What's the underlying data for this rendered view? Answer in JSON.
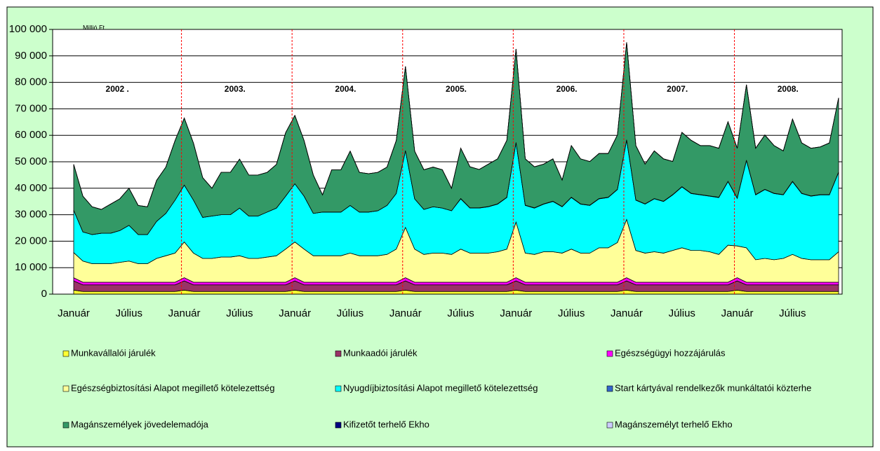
{
  "chart_data": {
    "type": "stacked_area",
    "unit_label": "Millió Ft",
    "categories": [
      "Január",
      null,
      null,
      null,
      null,
      null,
      "Július",
      null,
      null,
      null,
      null,
      null,
      "Január",
      null,
      null,
      null,
      null,
      null,
      "Július",
      null,
      null,
      null,
      null,
      null,
      "Január",
      null,
      null,
      null,
      null,
      null,
      "Július",
      null,
      null,
      null,
      null,
      null,
      "Január",
      null,
      null,
      null,
      null,
      null,
      "Július",
      null,
      null,
      null,
      null,
      null,
      "Január",
      null,
      null,
      null,
      null,
      null,
      "Július",
      null,
      null,
      null,
      null,
      null,
      "Január",
      null,
      null,
      null,
      null,
      null,
      "Július",
      null,
      null,
      null,
      null,
      null,
      "Január",
      null,
      null,
      null,
      null,
      null,
      "Július",
      null,
      null,
      null,
      null,
      null
    ],
    "year_labels": [
      "2002 .",
      "2003.",
      "2004.",
      "2005.",
      "2006.",
      "2007.",
      "2008."
    ],
    "ylim": [
      0,
      100000
    ],
    "yticks": [
      0,
      {
        "value": 10000,
        "label": "10 000"
      },
      {
        "value": 20000,
        "label": "20 000"
      },
      {
        "value": 30000,
        "label": "30 000"
      },
      {
        "value": 40000,
        "label": "40 000"
      },
      {
        "value": 50000,
        "label": "50 000"
      },
      {
        "value": 60000,
        "label": "60 000"
      },
      {
        "value": 70000,
        "label": "70 000"
      },
      {
        "value": 80000,
        "label": "80 000"
      },
      {
        "value": 90000,
        "label": "90 000"
      },
      {
        "value": 100000,
        "label": "100 000"
      }
    ],
    "grid": true,
    "legend": "bottom",
    "series": [
      {
        "name": "Munkavállalói járulék",
        "color": "#ffff33",
        "values": [
          1500,
          1000,
          1000,
          1000,
          1000,
          1000,
          1000,
          1000,
          1000,
          1000,
          1000,
          1000,
          1500,
          1000,
          1000,
          1000,
          1000,
          1000,
          1000,
          1000,
          1000,
          1000,
          1000,
          1000,
          1500,
          1000,
          1000,
          1000,
          1000,
          1000,
          1000,
          1000,
          1000,
          1000,
          1000,
          1000,
          1500,
          1000,
          1000,
          1000,
          1000,
          1000,
          1000,
          1000,
          1000,
          1000,
          1000,
          1000,
          1500,
          1000,
          1000,
          1000,
          1000,
          1000,
          1000,
          1000,
          1000,
          1000,
          1000,
          1000,
          1500,
          1000,
          1000,
          1000,
          1000,
          1000,
          1000,
          1000,
          1000,
          1000,
          1000,
          1000,
          1500,
          1000,
          1000,
          1000,
          1000,
          1000,
          1000,
          1000,
          1000,
          1000,
          1000,
          1000
        ]
      },
      {
        "name": "Munkaadói járulék",
        "color": "#993366",
        "values": [
          3500,
          2500,
          2500,
          2500,
          2500,
          2500,
          2500,
          2500,
          2500,
          2500,
          2500,
          2500,
          3500,
          2500,
          2500,
          2500,
          2500,
          2500,
          2500,
          2500,
          2500,
          2500,
          2500,
          2500,
          3500,
          2500,
          2500,
          2500,
          2500,
          2500,
          2500,
          2500,
          2500,
          2500,
          2500,
          2500,
          3500,
          2500,
          2500,
          2500,
          2500,
          2500,
          2500,
          2500,
          2500,
          2500,
          2500,
          2500,
          3500,
          2500,
          2500,
          2500,
          2500,
          2500,
          2500,
          2500,
          2500,
          2500,
          2500,
          2500,
          3500,
          2500,
          2500,
          2500,
          2500,
          2500,
          2500,
          2500,
          2500,
          2500,
          2500,
          2500,
          3500,
          2500,
          2500,
          2500,
          2500,
          2500,
          2500,
          2500,
          2500,
          2500,
          2500,
          2500
        ]
      },
      {
        "name": "Egészségügyi hozzájárulás",
        "color": "#ff00ff",
        "values": [
          1200,
          1000,
          1000,
          1000,
          1000,
          1000,
          1000,
          1000,
          1000,
          1000,
          1000,
          1000,
          1200,
          1000,
          1000,
          1000,
          1000,
          1000,
          1000,
          1000,
          1000,
          1000,
          1000,
          1000,
          1200,
          1000,
          1000,
          1000,
          1000,
          1000,
          1000,
          1000,
          1000,
          1000,
          1000,
          1000,
          1200,
          1000,
          1000,
          1000,
          1000,
          1000,
          1000,
          1000,
          1000,
          1000,
          1000,
          1000,
          1200,
          1000,
          1000,
          1000,
          1000,
          1000,
          1000,
          1000,
          1000,
          1000,
          1000,
          1000,
          1200,
          1000,
          1000,
          1000,
          1000,
          1000,
          1000,
          1000,
          1000,
          1000,
          1000,
          1000,
          1200,
          1000,
          1000,
          1000,
          1000,
          1000,
          1000,
          1000,
          1000,
          1000,
          1000,
          1000
        ]
      },
      {
        "name": "Egészségbiztosítási Alapot megillető kötelezettség",
        "color": "#ffff99",
        "values": [
          9500,
          8000,
          7000,
          7000,
          7000,
          7500,
          8000,
          7000,
          7000,
          9000,
          10000,
          11000,
          13500,
          11000,
          9000,
          9000,
          9500,
          9500,
          10000,
          9000,
          9000,
          9500,
          10000,
          12500,
          13500,
          12500,
          10000,
          10000,
          10000,
          10000,
          11000,
          10000,
          10000,
          10000,
          10500,
          12500,
          19000,
          12500,
          10500,
          11000,
          11000,
          10500,
          12500,
          11000,
          11000,
          11000,
          11500,
          12500,
          21000,
          11000,
          10500,
          11500,
          11500,
          11000,
          12500,
          11000,
          11000,
          13000,
          13000,
          15000,
          22000,
          12000,
          11000,
          11500,
          11000,
          12000,
          13000,
          12000,
          12000,
          11500,
          10500,
          14000,
          12000,
          13000,
          8500,
          9000,
          8500,
          9000,
          10500,
          9000,
          8500,
          8500,
          8500,
          11500
        ]
      },
      {
        "name": "Nyugdíjbiztosítási Alapot megillető kötelezettség",
        "color": "#00ffff",
        "values": [
          16000,
          11000,
          11000,
          11500,
          11500,
          12000,
          13500,
          11000,
          11000,
          14000,
          16000,
          20000,
          21500,
          20000,
          15500,
          16000,
          16000,
          16000,
          18000,
          16000,
          16000,
          17000,
          18000,
          20000,
          22000,
          20000,
          16000,
          16500,
          16500,
          16500,
          18000,
          16500,
          16500,
          17000,
          18500,
          21000,
          29000,
          19000,
          17000,
          17500,
          17000,
          16500,
          19000,
          17000,
          17000,
          17500,
          18000,
          19500,
          30000,
          18000,
          17500,
          18000,
          19000,
          17500,
          19500,
          18500,
          18000,
          18500,
          19000,
          20000,
          30000,
          19000,
          18500,
          20000,
          19500,
          21000,
          23000,
          21500,
          21000,
          21000,
          21500,
          24000,
          18000,
          33000,
          24500,
          26000,
          25000,
          24000,
          27500,
          24500,
          24000,
          24500,
          24500,
          30000
        ]
      },
      {
        "name": "Start kártyával rendelkezők munkáltatói közterhe",
        "color": "#3366cc",
        "values": [
          0,
          0,
          0,
          0,
          0,
          0,
          0,
          0,
          0,
          0,
          0,
          0,
          0,
          0,
          0,
          0,
          0,
          0,
          0,
          0,
          0,
          0,
          0,
          0,
          0,
          0,
          0,
          0,
          0,
          0,
          0,
          0,
          0,
          0,
          0,
          0,
          0,
          0,
          0,
          0,
          0,
          0,
          100,
          100,
          100,
          100,
          100,
          100,
          100,
          100,
          100,
          100,
          100,
          100,
          100,
          100,
          100,
          100,
          100,
          100,
          100,
          100,
          100,
          100,
          100,
          100,
          100,
          100,
          100,
          100,
          100,
          100,
          100,
          100,
          100,
          100,
          100,
          100,
          100,
          100,
          100,
          100,
          100,
          100
        ]
      },
      {
        "name": "Magánszemélyek jövedelemadója",
        "color": "#339966",
        "values": [
          17300,
          13500,
          10500,
          9000,
          11000,
          12000,
          14000,
          11000,
          10500,
          15500,
          17500,
          22500,
          25300,
          21500,
          15000,
          10500,
          16000,
          16000,
          18500,
          15500,
          15500,
          15000,
          16500,
          24000,
          25800,
          21000,
          14500,
          6500,
          16000,
          16000,
          20500,
          15000,
          14500,
          14500,
          14500,
          20000,
          31800,
          18000,
          15000,
          15000,
          14500,
          8500,
          19000,
          15500,
          14500,
          16000,
          17000,
          21500,
          35300,
          17500,
          15500,
          15000,
          16000,
          10000,
          19500,
          17000,
          16500,
          17000,
          16500,
          20500,
          36800,
          20500,
          15000,
          18000,
          16000,
          12500,
          20500,
          20000,
          18500,
          19000,
          18500,
          22500,
          18800,
          28500,
          17500,
          20500,
          18000,
          16500,
          23500,
          19000,
          18000,
          18000,
          19500,
          28000
        ]
      },
      {
        "name": "Kifizetőt terhelő Ekho",
        "color": "#000080",
        "values": [
          0,
          0,
          0,
          0,
          0,
          0,
          0,
          0,
          0,
          0,
          0,
          0,
          0,
          0,
          0,
          0,
          0,
          0,
          0,
          0,
          0,
          0,
          0,
          0,
          0,
          0,
          0,
          0,
          0,
          0,
          0,
          0,
          0,
          0,
          0,
          0,
          0,
          0,
          0,
          0,
          0,
          0,
          0,
          0,
          0,
          0,
          0,
          0,
          0,
          0,
          0,
          0,
          0,
          0,
          0,
          0,
          0,
          20,
          20,
          20,
          20,
          20,
          20,
          20,
          20,
          20,
          20,
          20,
          20,
          20,
          20,
          20,
          20,
          20,
          20,
          20,
          20,
          20,
          20,
          20,
          20,
          20,
          20,
          20
        ]
      },
      {
        "name": "Magánszemélyt terhelő Ekho",
        "color": "#ccccff",
        "values": [
          0,
          0,
          0,
          0,
          0,
          0,
          0,
          0,
          0,
          0,
          0,
          0,
          0,
          0,
          0,
          0,
          0,
          0,
          0,
          0,
          0,
          0,
          0,
          0,
          0,
          0,
          0,
          0,
          0,
          0,
          0,
          0,
          0,
          0,
          0,
          0,
          0,
          0,
          0,
          0,
          0,
          0,
          0,
          0,
          0,
          0,
          0,
          0,
          0,
          0,
          0,
          0,
          0,
          0,
          0,
          0,
          0,
          10,
          10,
          10,
          10,
          10,
          10,
          10,
          10,
          10,
          10,
          10,
          10,
          10,
          10,
          10,
          10,
          10,
          10,
          10,
          10,
          10,
          10,
          10,
          10,
          10,
          10,
          10
        ]
      }
    ]
  }
}
